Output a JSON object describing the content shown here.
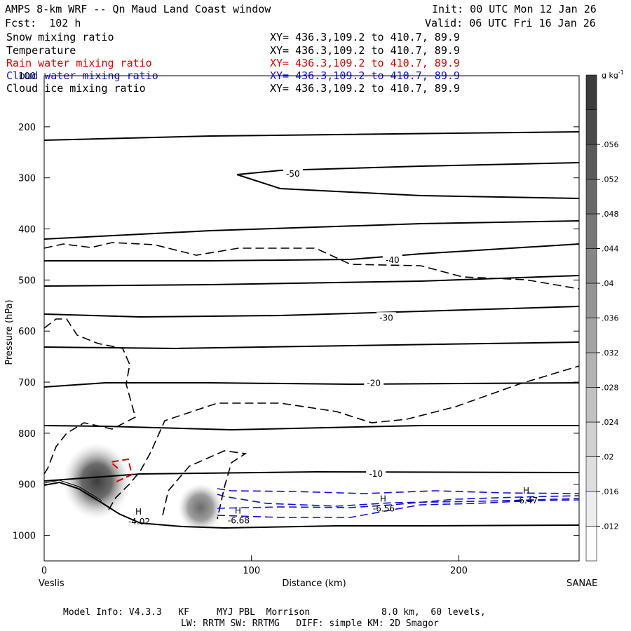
{
  "header": {
    "title": "AMPS 8-km WRF -- Qn Maud Land Coast window",
    "init": "Init: 00 UTC Mon 12 Jan 26",
    "forecast": "Fcst:  102 h",
    "valid": "Valid: 06 UTC Fri 16 Jan 26"
  },
  "fields": [
    {
      "name": "Snow mixing ratio",
      "xy": "XY= 436.3,109.2 to 410.7, 89.9",
      "color": "#000000"
    },
    {
      "name": "Temperature",
      "xy": "XY= 436.3,109.2 to 410.7, 89.9",
      "color": "#000000"
    },
    {
      "name": "Rain water mixing ratio",
      "xy": "XY= 436.3,109.2 to 410.7, 89.9",
      "color": "#e00000"
    },
    {
      "name": "Cloud water mixing ratio",
      "xy": "XY= 436.3,109.2 to 410.7, 89.9",
      "color": "#1010d0"
    },
    {
      "name": "Cloud ice mixing ratio",
      "xy": "XY= 436.3,109.2 to 410.7, 89.9",
      "color": "#000000"
    }
  ],
  "chart_data": {
    "type": "cross-section",
    "ylabel": "Pressure (hPa)",
    "xlabel": "Distance (km)",
    "ylim": [
      1050,
      100
    ],
    "xlim": [
      0,
      258
    ],
    "yticks": [
      100,
      200,
      300,
      400,
      500,
      600,
      700,
      800,
      900,
      1000
    ],
    "xticks": [
      0,
      100,
      200
    ],
    "left_endpoint": "Veslis",
    "right_endpoint": "SANAE",
    "temperature_contour_labels": [
      {
        "text": "-50",
        "x": 120,
        "p": 292
      },
      {
        "text": "-40",
        "x": 168,
        "p": 461
      },
      {
        "text": "-30",
        "x": 165,
        "p": 574
      },
      {
        "text": "-20",
        "x": 159,
        "p": 702
      },
      {
        "text": "-10",
        "x": 160,
        "p": 880
      }
    ],
    "terrain_labels": [
      {
        "H": "H",
        "value": "-4.02",
        "x": 48,
        "p": 962
      },
      {
        "H": "H",
        "value": "-6.68",
        "x": 96,
        "p": 960
      },
      {
        "H": "H",
        "value": "-6.56",
        "x": 166,
        "p": 937
      },
      {
        "H": "H",
        "value": "-6.47",
        "x": 235,
        "p": 921
      }
    ],
    "colorbar": {
      "unit": "g kg",
      "unit_exp": "-1",
      "ticks": [
        ".012",
        ".016",
        ".02",
        ".024",
        ".028",
        ".032",
        ".036",
        ".04",
        ".044",
        ".048",
        ".052",
        ".056"
      ]
    }
  },
  "footer": {
    "line1": "Model Info: V4.3.3   KF     MYJ PBL  Morrison             8.0 km,  60 levels,",
    "line2": "LW: RRTM SW: RRTMG   DIFF: simple KM: 2D Smagor"
  }
}
